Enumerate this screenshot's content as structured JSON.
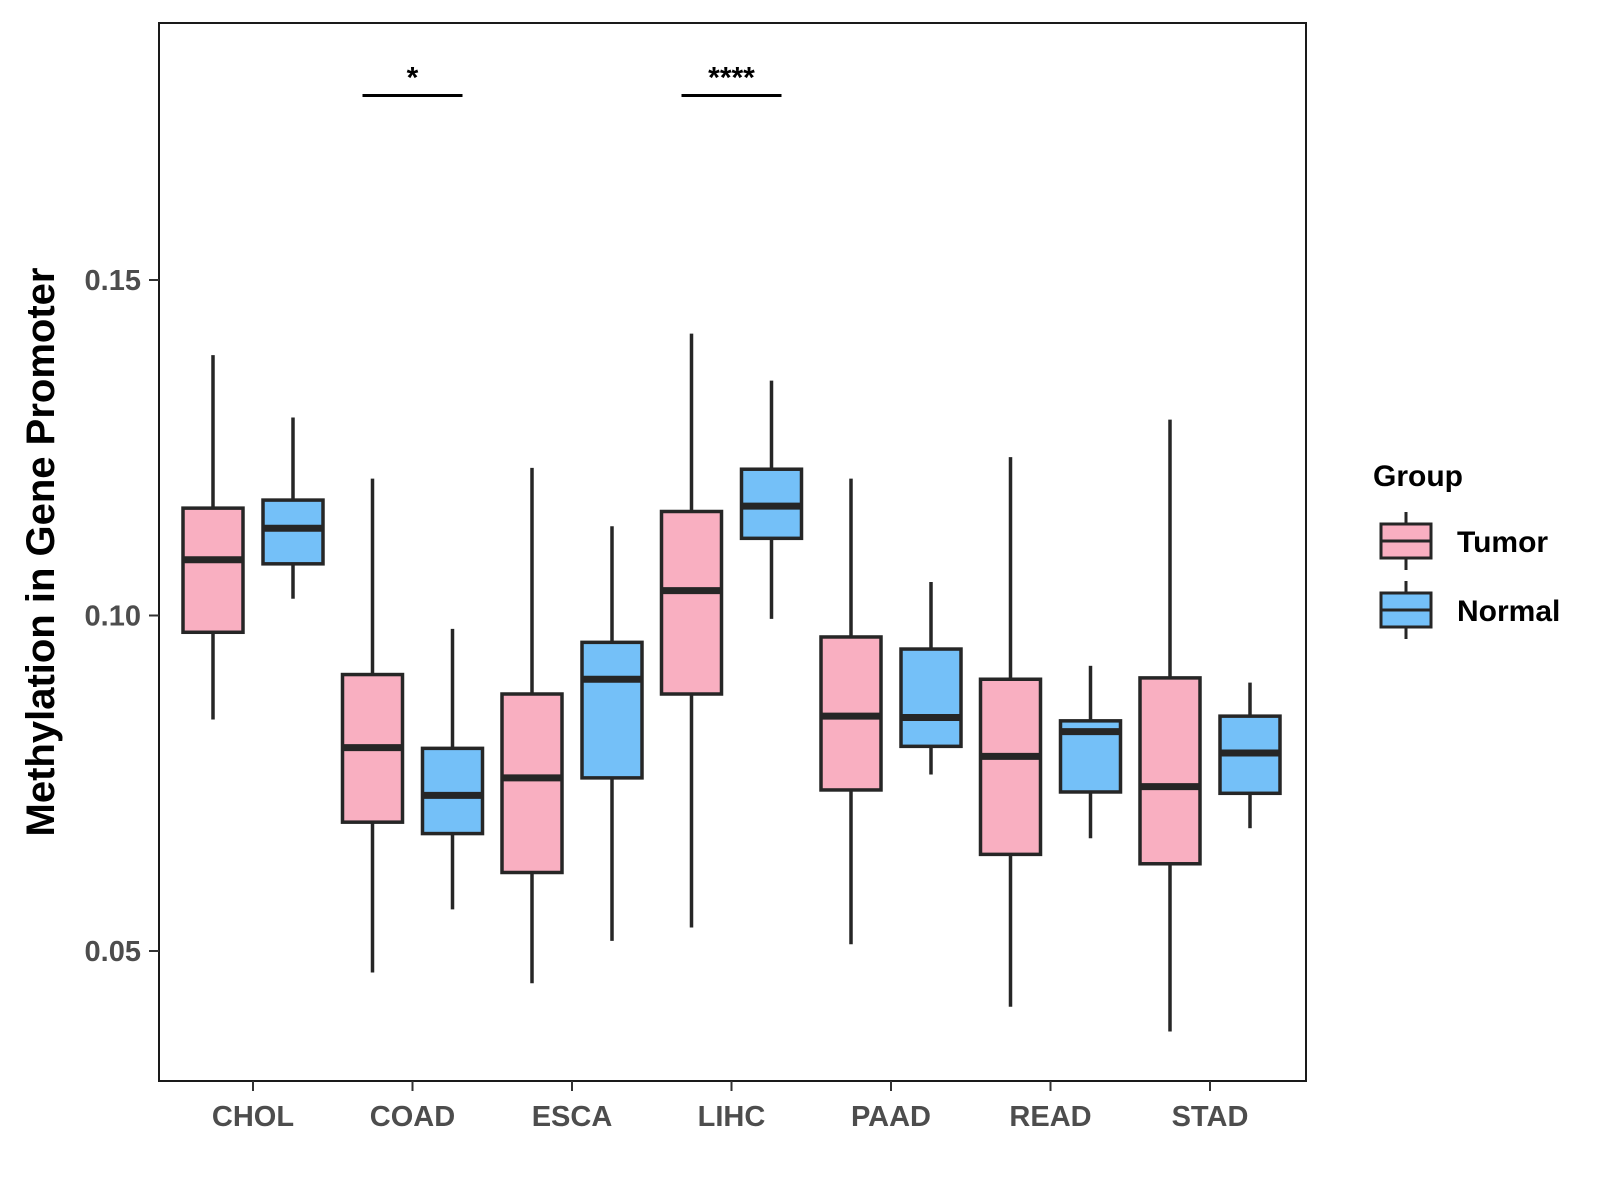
{
  "chart_data": {
    "type": "box",
    "title": "",
    "xlabel": "",
    "ylabel": "Methylation in Gene Promoter",
    "ylim": [
      0.031,
      0.188
    ],
    "yticks": [
      0.05,
      0.1,
      0.15
    ],
    "ytick_labels": [
      "0.05",
      "0.10",
      "0.15"
    ],
    "categories": [
      "CHOL",
      "COAD",
      "ESCA",
      "LIHC",
      "PAAD",
      "READ",
      "STAD"
    ],
    "grid": false,
    "legend": {
      "title": "Group",
      "position": "right",
      "entries": [
        "Tumor",
        "Normal"
      ]
    },
    "series": [
      {
        "name": "Tumor",
        "color": "#f9afc1",
        "boxes": [
          {
            "category": "CHOL",
            "whisker_low": 0.0845,
            "q1": 0.0975,
            "median": 0.1083,
            "q3": 0.116,
            "whisker_high": 0.1388
          },
          {
            "category": "COAD",
            "whisker_low": 0.0468,
            "q1": 0.0692,
            "median": 0.0803,
            "q3": 0.0912,
            "whisker_high": 0.1204
          },
          {
            "category": "ESCA",
            "whisker_low": 0.0452,
            "q1": 0.0617,
            "median": 0.0758,
            "q3": 0.0883,
            "whisker_high": 0.122
          },
          {
            "category": "LIHC",
            "whisker_low": 0.0535,
            "q1": 0.0883,
            "median": 0.1037,
            "q3": 0.1155,
            "whisker_high": 0.142
          },
          {
            "category": "PAAD",
            "whisker_low": 0.051,
            "q1": 0.074,
            "median": 0.085,
            "q3": 0.0968,
            "whisker_high": 0.1204
          },
          {
            "category": "READ",
            "whisker_low": 0.0417,
            "q1": 0.0644,
            "median": 0.079,
            "q3": 0.0905,
            "whisker_high": 0.1236
          },
          {
            "category": "STAD",
            "whisker_low": 0.038,
            "q1": 0.063,
            "median": 0.0745,
            "q3": 0.0907,
            "whisker_high": 0.1292
          }
        ]
      },
      {
        "name": "Normal",
        "color": "#74c0f8",
        "boxes": [
          {
            "category": "CHOL",
            "whisker_low": 0.1025,
            "q1": 0.1077,
            "median": 0.113,
            "q3": 0.1172,
            "whisker_high": 0.1295
          },
          {
            "category": "COAD",
            "whisker_low": 0.0562,
            "q1": 0.0675,
            "median": 0.0732,
            "q3": 0.0802,
            "whisker_high": 0.098
          },
          {
            "category": "ESCA",
            "whisker_low": 0.0515,
            "q1": 0.0758,
            "median": 0.0905,
            "q3": 0.096,
            "whisker_high": 0.1133
          },
          {
            "category": "LIHC",
            "whisker_low": 0.0995,
            "q1": 0.1115,
            "median": 0.1163,
            "q3": 0.1218,
            "whisker_high": 0.135
          },
          {
            "category": "PAAD",
            "whisker_low": 0.0763,
            "q1": 0.0805,
            "median": 0.0848,
            "q3": 0.095,
            "whisker_high": 0.105
          },
          {
            "category": "READ",
            "whisker_low": 0.0668,
            "q1": 0.0737,
            "median": 0.0827,
            "q3": 0.0843,
            "whisker_high": 0.0925
          },
          {
            "category": "STAD",
            "whisker_low": 0.0683,
            "q1": 0.0735,
            "median": 0.0795,
            "q3": 0.085,
            "whisker_high": 0.09
          }
        ]
      }
    ],
    "annotations": [
      {
        "category": "COAD",
        "label": "*",
        "y": 0.1775
      },
      {
        "category": "LIHC",
        "label": "****",
        "y": 0.1775
      }
    ]
  }
}
